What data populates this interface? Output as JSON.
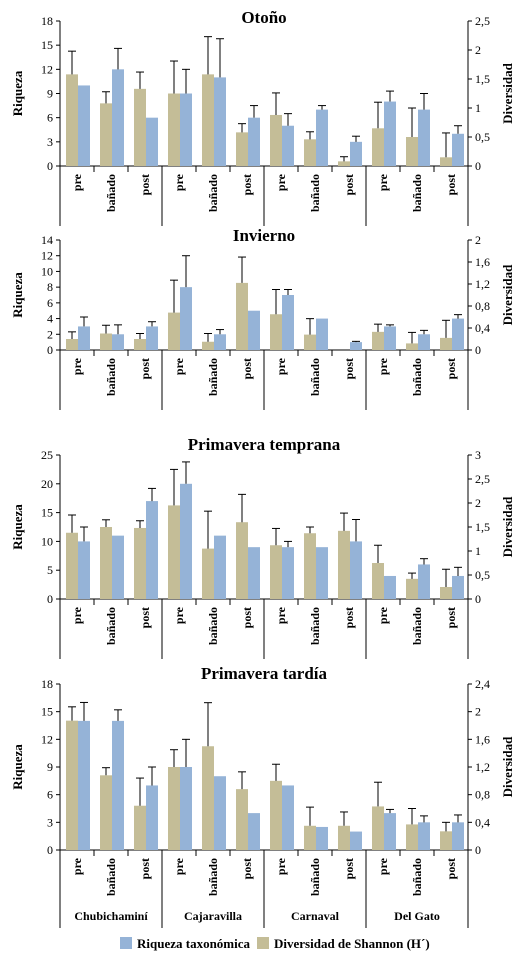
{
  "colors": {
    "riqueza": "#95b3d7",
    "diversidad": "#c4bd97",
    "axis": "#000000"
  },
  "sites": [
    "Chubichaminí",
    "Cajaravilla",
    "Carnaval",
    "Del Gato"
  ],
  "legend": {
    "riqueza": "Riqueza taxonómica",
    "diversidad": "Diversidad de Shannon (H´)"
  },
  "chart_data": [
    {
      "type": "bar",
      "title": "Otoño",
      "ylabel": "Riqueza",
      "y2label": "Diversidad",
      "ylim": [
        0,
        18
      ],
      "y2lim": [
        0,
        2.5
      ],
      "yticks": [
        "0",
        "3",
        "6",
        "9",
        "12",
        "15",
        "18"
      ],
      "y2ticks": [
        "0",
        "0,5",
        "1",
        "1,5",
        "2",
        "2,5"
      ],
      "categories": [
        "pre",
        "bañado",
        "post",
        "pre",
        "bañado",
        "post",
        "pre",
        "bañado",
        "post",
        "pre",
        "bañado",
        "post"
      ],
      "series": [
        {
          "name": "Diversidad de Shannon (H´)",
          "axis": "right",
          "values": [
            1.58,
            1.08,
            1.33,
            1.25,
            1.58,
            0.58,
            0.88,
            0.46,
            0.08,
            0.65,
            0.5,
            0.15
          ],
          "errors": [
            0.4,
            0.2,
            0.29,
            0.56,
            0.65,
            0.15,
            0.38,
            0.13,
            0.08,
            0.45,
            0.5,
            0.42
          ]
        },
        {
          "name": "Riqueza taxonómica",
          "axis": "left",
          "values": [
            10,
            12,
            6,
            9,
            11,
            6,
            5,
            7,
            3,
            8,
            7,
            4
          ],
          "errors": [
            0,
            2.6,
            0,
            3,
            4.8,
            1.5,
            1.5,
            0.5,
            0.7,
            1.3,
            2,
            1
          ]
        }
      ]
    },
    {
      "type": "bar",
      "title": "Invierno",
      "ylabel": "Riqueza",
      "y2label": "Diversidad",
      "ylim": [
        0,
        14
      ],
      "y2lim": [
        0,
        2
      ],
      "yticks": [
        "0",
        "2",
        "4",
        "6",
        "8",
        "10",
        "12",
        "14"
      ],
      "y2ticks": [
        "0",
        "0,4",
        "0,8",
        "1,2",
        "1,6",
        "2"
      ],
      "categories": [
        "pre",
        "bañado",
        "post",
        "pre",
        "bañado",
        "post",
        "pre",
        "bañado",
        "post",
        "pre",
        "bañado",
        "post"
      ],
      "series": [
        {
          "name": "Diversidad de Shannon (H´)",
          "axis": "right",
          "values": [
            0.2,
            0.3,
            0.2,
            0.68,
            0.15,
            1.22,
            0.65,
            0.28,
            0,
            0.33,
            0.12,
            0.22
          ],
          "errors": [
            0.13,
            0.15,
            0.1,
            0.59,
            0.15,
            0.47,
            0.45,
            0.29,
            0,
            0.14,
            0.2,
            0.32
          ]
        },
        {
          "name": "Riqueza taxonómica",
          "axis": "left",
          "values": [
            3,
            2,
            3,
            8,
            2,
            5,
            7,
            4,
            1,
            3,
            2,
            4
          ],
          "errors": [
            1.2,
            1.2,
            0.6,
            4,
            0.6,
            0,
            0.7,
            0,
            0.1,
            0.2,
            0.5,
            0.5
          ]
        }
      ]
    },
    {
      "type": "bar",
      "title": "Primavera temprana",
      "ylabel": "Riqueza",
      "y2label": "Diversidad",
      "ylim": [
        0,
        25
      ],
      "y2lim": [
        0,
        3
      ],
      "yticks": [
        "0",
        "5",
        "10",
        "15",
        "20",
        "25"
      ],
      "y2ticks": [
        "0",
        "0,5",
        "1",
        "1,5",
        "2",
        "2,5",
        "3"
      ],
      "categories": [
        "pre",
        "bañado",
        "post",
        "pre",
        "bañado",
        "post",
        "pre",
        "bañado",
        "post",
        "pre",
        "bañado",
        "post"
      ],
      "series": [
        {
          "name": "Diversidad de Shannon (H´)",
          "axis": "right",
          "values": [
            1.38,
            1.5,
            1.48,
            1.95,
            1.05,
            1.6,
            1.12,
            1.37,
            1.42,
            0.75,
            0.42,
            0.25
          ],
          "errors": [
            0.37,
            0.15,
            0.15,
            0.75,
            0.78,
            0.58,
            0.35,
            0.13,
            0.37,
            0.37,
            0.12,
            0.37
          ]
        },
        {
          "name": "Riqueza taxonómica",
          "axis": "left",
          "values": [
            10,
            11,
            17,
            20,
            11,
            9,
            9,
            9,
            10,
            4,
            6,
            4
          ],
          "errors": [
            2.5,
            0,
            2.2,
            3.8,
            0,
            0,
            1,
            0,
            3.8,
            0,
            1,
            1.5
          ]
        }
      ]
    },
    {
      "type": "bar",
      "title": "Primavera tardía",
      "ylabel": "Riqueza",
      "y2label": "Diversidad",
      "ylim": [
        0,
        18
      ],
      "y2lim": [
        0,
        2.4
      ],
      "yticks": [
        "0",
        "3",
        "6",
        "9",
        "12",
        "15",
        "18"
      ],
      "y2ticks": [
        "0",
        "0,4",
        "0,8",
        "1,2",
        "1,6",
        "2",
        "2,4"
      ],
      "categories": [
        "pre",
        "bañado",
        "post",
        "pre",
        "bañado",
        "post",
        "pre",
        "bañado",
        "post",
        "pre",
        "bañado",
        "post"
      ],
      "series": [
        {
          "name": "Diversidad de Shannon (H´)",
          "axis": "right",
          "values": [
            1.87,
            1.08,
            0.64,
            1.2,
            1.5,
            0.88,
            1.0,
            0.35,
            0.35,
            0.63,
            0.37,
            0.27
          ],
          "errors": [
            0.2,
            0.11,
            0.4,
            0.25,
            0.63,
            0.25,
            0.24,
            0.27,
            0.2,
            0.35,
            0.23,
            0.13
          ]
        },
        {
          "name": "Riqueza taxonómica",
          "axis": "left",
          "values": [
            14,
            14,
            7,
            9,
            8,
            4,
            7,
            2.5,
            2,
            4,
            3,
            3
          ],
          "errors": [
            2,
            1.2,
            2,
            3,
            0,
            0,
            0,
            0,
            0,
            0.4,
            0.7,
            0.8
          ]
        }
      ]
    }
  ]
}
